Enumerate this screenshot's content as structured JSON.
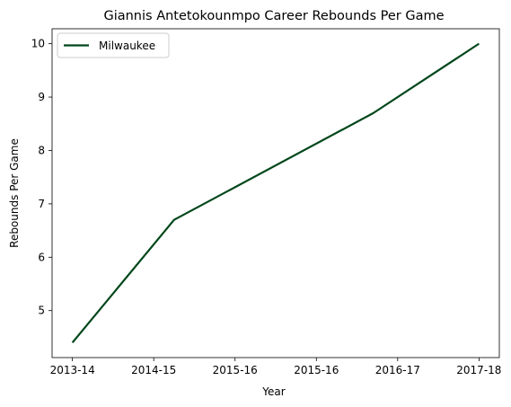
{
  "chart_data": {
    "type": "line",
    "title": "Giannis Antetokounmpo Career Rebounds Per Game",
    "xlabel": "Year",
    "ylabel": "Rebounds Per Game",
    "x_tick_labels": [
      "2013-14",
      "2014-15",
      "2015-16",
      "2015-16",
      "2016-17",
      "2017-18"
    ],
    "y_ticks": [
      5,
      6,
      7,
      8,
      9,
      10
    ],
    "ylim": [
      4.12,
      10.28
    ],
    "xlim": [
      -0.25,
      5.25
    ],
    "grid": false,
    "legend_position": "top-left",
    "series": [
      {
        "name": "Milwaukee",
        "color": "#00471b",
        "points": [
          {
            "x": 0,
            "y": 4.4
          },
          {
            "x": 1.25,
            "y": 6.7
          },
          {
            "x": 3.7,
            "y": 8.7
          },
          {
            "x": 5,
            "y": 10.0
          }
        ]
      }
    ]
  }
}
